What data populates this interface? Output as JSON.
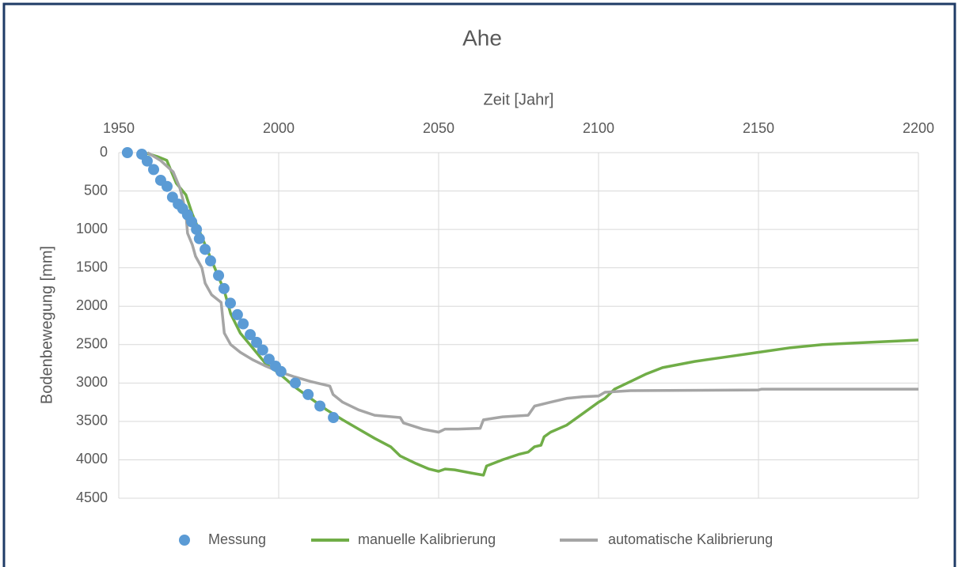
{
  "chart_data": {
    "type": "line",
    "title": "Ahe",
    "x_label": "Zeit [Jahr]",
    "y_label": "Bodenbewegung [mm]",
    "xlim": [
      1950,
      2200
    ],
    "xticks": [
      1950,
      2000,
      2050,
      2100,
      2150,
      2200
    ],
    "ylim": [
      0,
      4500
    ],
    "yticks": [
      0,
      500,
      1000,
      1500,
      2000,
      2500,
      3000,
      3500,
      4000,
      4500
    ],
    "y_reversed": true,
    "x_axis_position": "top",
    "grid": true,
    "legend": "bottom",
    "series": [
      {
        "name": "Messung",
        "type": "scatter",
        "color": "#5b9bd5",
        "x": [
          1952.7,
          1957.2,
          1958.9,
          1960.9,
          1963.1,
          1965.1,
          1966.8,
          1968.6,
          1970,
          1971.5,
          1972.8,
          1974.3,
          1975.2,
          1977,
          1978.7,
          1981.2,
          1982.9,
          1984.9,
          1987.1,
          1988.9,
          1991.1,
          1993.1,
          1995,
          1997,
          1999,
          2000.7,
          2005.2,
          2009.2,
          2012.9,
          2017.1
        ],
        "values": [
          0,
          20,
          110,
          220,
          360,
          440,
          580,
          670,
          730,
          810,
          900,
          1000,
          1120,
          1260,
          1410,
          1600,
          1770,
          1960,
          2110,
          2230,
          2370,
          2470,
          2570,
          2690,
          2780,
          2850,
          3000,
          3150,
          3300,
          3450
        ]
      },
      {
        "name": "manuelle Kalibrierung",
        "type": "line",
        "color": "#70ad47",
        "x": [
          1958,
          1962,
          1965,
          1966,
          1968,
          1971,
          1973,
          1976,
          1980,
          1983,
          1985,
          1988,
          1992,
          1996,
          2000,
          2005,
          2010,
          2015,
          2020,
          2025,
          2030,
          2035,
          2038,
          2043,
          2047,
          2050,
          2052,
          2055,
          2060,
          2064,
          2065,
          2070,
          2075,
          2078,
          2080,
          2082,
          2083,
          2085,
          2090,
          2095,
          2100,
          2102,
          2105,
          2110,
          2115,
          2120,
          2130,
          2140,
          2150,
          2160,
          2170,
          2180,
          2190,
          2200
        ],
        "values": [
          0,
          50,
          100,
          200,
          400,
          550,
          800,
          1100,
          1500,
          1800,
          2100,
          2350,
          2550,
          2750,
          2870,
          3050,
          3200,
          3350,
          3480,
          3600,
          3720,
          3830,
          3950,
          4050,
          4120,
          4150,
          4120,
          4130,
          4170,
          4200,
          4080,
          4000,
          3930,
          3900,
          3830,
          3810,
          3700,
          3640,
          3550,
          3400,
          3250,
          3200,
          3080,
          2980,
          2880,
          2800,
          2720,
          2660,
          2600,
          2540,
          2500,
          2480,
          2460,
          2440
        ]
      },
      {
        "name": "automatische Kalibrierung",
        "type": "line",
        "color": "#a5a5a5",
        "x": [
          1959,
          1963,
          1967,
          1969,
          1970,
          1971,
          1971.5,
          1973,
          1974,
          1976,
          1977,
          1979,
          1982,
          1982.5,
          1983,
          1985,
          1988,
          1992,
          1996,
          2000,
          2005,
          2010,
          2016,
          2017,
          2020,
          2025,
          2030,
          2038,
          2039,
          2045,
          2050,
          2052,
          2056,
          2063,
          2064,
          2070,
          2078,
          2080,
          2085,
          2090,
          2095,
          2100,
          2102,
          2110,
          2150,
          2151,
          2200
        ],
        "values": [
          0,
          100,
          250,
          450,
          600,
          800,
          1050,
          1200,
          1350,
          1500,
          1700,
          1850,
          1950,
          2150,
          2350,
          2500,
          2600,
          2700,
          2780,
          2850,
          2920,
          2980,
          3040,
          3150,
          3250,
          3350,
          3420,
          3450,
          3520,
          3600,
          3640,
          3600,
          3600,
          3590,
          3480,
          3440,
          3420,
          3300,
          3250,
          3200,
          3180,
          3170,
          3120,
          3100,
          3090,
          3080,
          3080
        ]
      }
    ]
  }
}
